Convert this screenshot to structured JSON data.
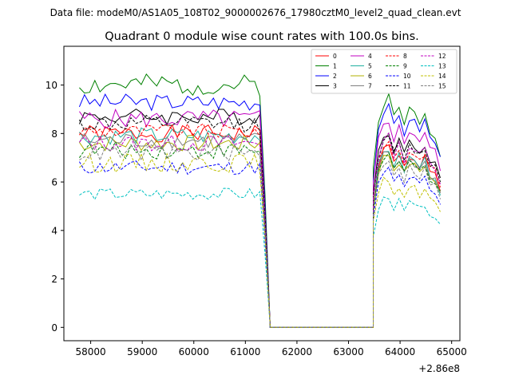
{
  "chart_data": {
    "type": "line",
    "supertitle": "Data file: modeM0/AS1A05_108T02_9000002676_17980cztM0_level2_quad_clean.evt",
    "title": "Quadrant 0 module wise count rates with 100.0s bins.",
    "xlabel": "",
    "ylabel": "",
    "x_offset_label": "+2.86e8",
    "xlim": [
      57480,
      65160
    ],
    "ylim": [
      -0.55,
      11.6
    ],
    "xticks": [
      58000,
      59000,
      60000,
      61000,
      62000,
      63000,
      64000,
      65000
    ],
    "xtick_labels": [
      "58000",
      "59000",
      "60000",
      "61000",
      "62000",
      "63000",
      "64000",
      "65000"
    ],
    "yticks": [
      0,
      2,
      4,
      6,
      8,
      10
    ],
    "ytick_labels": [
      "0",
      "2",
      "4",
      "6",
      "8",
      "10"
    ],
    "legend": {
      "position": "top-right",
      "columns": 4
    },
    "segments": [
      {
        "x_start": 57780,
        "x_step": 100,
        "count": 36
      },
      {
        "x_start": 61380,
        "x_step": 100,
        "count": 2
      },
      {
        "x_start": 61480,
        "x_step": 100,
        "count": 21
      },
      {
        "x_start": 63480,
        "x_step": 100,
        "count": 14
      }
    ],
    "series": [
      {
        "name": "0",
        "color": "#ff0000",
        "dash": "solid",
        "level": 8.0,
        "seed": 1,
        "amp": 0.35,
        "post_level": 7.3
      },
      {
        "name": "1",
        "color": "#008000",
        "dash": "solid",
        "level": 10.0,
        "seed": 2,
        "amp": 0.45,
        "post_level": 9.3
      },
      {
        "name": "2",
        "color": "#0000ff",
        "dash": "solid",
        "level": 9.3,
        "seed": 3,
        "amp": 0.35,
        "post_level": 8.9
      },
      {
        "name": "3",
        "color": "#000000",
        "dash": "solid",
        "level": 8.7,
        "seed": 4,
        "amp": 0.35,
        "post_level": 7.9
      },
      {
        "name": "4",
        "color": "#c000c0",
        "dash": "solid",
        "level": 8.6,
        "seed": 5,
        "amp": 0.4,
        "post_level": 8.4
      },
      {
        "name": "5",
        "color": "#20b0a0",
        "dash": "solid",
        "level": 7.9,
        "seed": 6,
        "amp": 0.35,
        "post_level": 7.2
      },
      {
        "name": "6",
        "color": "#b0b000",
        "dash": "solid",
        "level": 7.6,
        "seed": 7,
        "amp": 0.35,
        "post_level": 7.0
      },
      {
        "name": "7",
        "color": "#808080",
        "dash": "solid",
        "level": 7.7,
        "seed": 8,
        "amp": 0.35,
        "post_level": 7.1
      },
      {
        "name": "8",
        "color": "#ff0000",
        "dash": "dashed",
        "level": 8.1,
        "seed": 9,
        "amp": 0.3,
        "post_level": 7.5
      },
      {
        "name": "9",
        "color": "#008000",
        "dash": "dashed",
        "level": 7.3,
        "seed": 10,
        "amp": 0.35,
        "post_level": 7.0
      },
      {
        "name": "10",
        "color": "#0000ff",
        "dash": "dashed",
        "level": 6.6,
        "seed": 11,
        "amp": 0.3,
        "post_level": 6.4
      },
      {
        "name": "11",
        "color": "#000000",
        "dash": "dashed",
        "level": 8.4,
        "seed": 12,
        "amp": 0.35,
        "post_level": 7.7
      },
      {
        "name": "12",
        "color": "#c000c0",
        "dash": "dashed",
        "level": 7.6,
        "seed": 13,
        "amp": 0.35,
        "post_level": 7.7
      },
      {
        "name": "13",
        "color": "#00c0c0",
        "dash": "dashed",
        "level": 5.5,
        "seed": 14,
        "amp": 0.25,
        "post_level": 5.3
      },
      {
        "name": "14",
        "color": "#c0c000",
        "dash": "dashed",
        "level": 6.8,
        "seed": 15,
        "amp": 0.4,
        "post_level": 6.0
      },
      {
        "name": "15",
        "color": "#808080",
        "dash": "dashed",
        "level": 7.2,
        "seed": 16,
        "amp": 0.35,
        "post_level": 6.8
      }
    ]
  }
}
